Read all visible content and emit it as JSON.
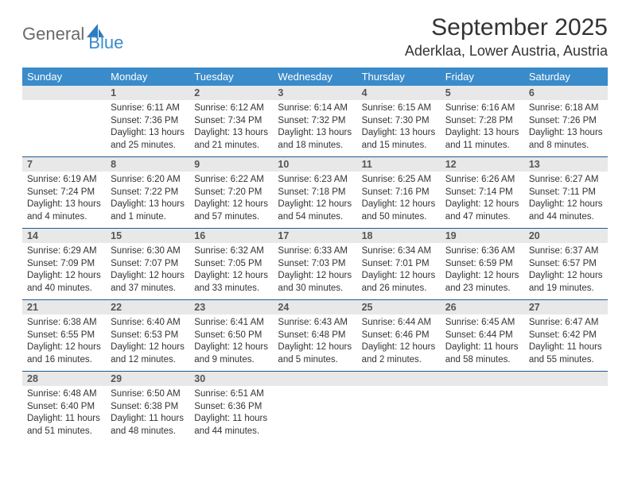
{
  "brand": {
    "part1": "General",
    "part2l": "B",
    "part2r": "lue"
  },
  "title": "September 2025",
  "location": "Aderklaa, Lower Austria, Austria",
  "colors": {
    "header_bg": "#3a8bca",
    "header_text": "#ffffff",
    "grid_border": "#1f5b8f",
    "daynum_bg": "#e8e8e8",
    "text": "#333333"
  },
  "day_names": [
    "Sunday",
    "Monday",
    "Tuesday",
    "Wednesday",
    "Thursday",
    "Friday",
    "Saturday"
  ],
  "weeks": [
    [
      {
        "n": "",
        "empty": true
      },
      {
        "n": "1",
        "sr": "Sunrise: 6:11 AM",
        "ss": "Sunset: 7:36 PM",
        "dl": "Daylight: 13 hours and 25 minutes."
      },
      {
        "n": "2",
        "sr": "Sunrise: 6:12 AM",
        "ss": "Sunset: 7:34 PM",
        "dl": "Daylight: 13 hours and 21 minutes."
      },
      {
        "n": "3",
        "sr": "Sunrise: 6:14 AM",
        "ss": "Sunset: 7:32 PM",
        "dl": "Daylight: 13 hours and 18 minutes."
      },
      {
        "n": "4",
        "sr": "Sunrise: 6:15 AM",
        "ss": "Sunset: 7:30 PM",
        "dl": "Daylight: 13 hours and 15 minutes."
      },
      {
        "n": "5",
        "sr": "Sunrise: 6:16 AM",
        "ss": "Sunset: 7:28 PM",
        "dl": "Daylight: 13 hours and 11 minutes."
      },
      {
        "n": "6",
        "sr": "Sunrise: 6:18 AM",
        "ss": "Sunset: 7:26 PM",
        "dl": "Daylight: 13 hours and 8 minutes."
      }
    ],
    [
      {
        "n": "7",
        "sr": "Sunrise: 6:19 AM",
        "ss": "Sunset: 7:24 PM",
        "dl": "Daylight: 13 hours and 4 minutes."
      },
      {
        "n": "8",
        "sr": "Sunrise: 6:20 AM",
        "ss": "Sunset: 7:22 PM",
        "dl": "Daylight: 13 hours and 1 minute."
      },
      {
        "n": "9",
        "sr": "Sunrise: 6:22 AM",
        "ss": "Sunset: 7:20 PM",
        "dl": "Daylight: 12 hours and 57 minutes."
      },
      {
        "n": "10",
        "sr": "Sunrise: 6:23 AM",
        "ss": "Sunset: 7:18 PM",
        "dl": "Daylight: 12 hours and 54 minutes."
      },
      {
        "n": "11",
        "sr": "Sunrise: 6:25 AM",
        "ss": "Sunset: 7:16 PM",
        "dl": "Daylight: 12 hours and 50 minutes."
      },
      {
        "n": "12",
        "sr": "Sunrise: 6:26 AM",
        "ss": "Sunset: 7:14 PM",
        "dl": "Daylight: 12 hours and 47 minutes."
      },
      {
        "n": "13",
        "sr": "Sunrise: 6:27 AM",
        "ss": "Sunset: 7:11 PM",
        "dl": "Daylight: 12 hours and 44 minutes."
      }
    ],
    [
      {
        "n": "14",
        "sr": "Sunrise: 6:29 AM",
        "ss": "Sunset: 7:09 PM",
        "dl": "Daylight: 12 hours and 40 minutes."
      },
      {
        "n": "15",
        "sr": "Sunrise: 6:30 AM",
        "ss": "Sunset: 7:07 PM",
        "dl": "Daylight: 12 hours and 37 minutes."
      },
      {
        "n": "16",
        "sr": "Sunrise: 6:32 AM",
        "ss": "Sunset: 7:05 PM",
        "dl": "Daylight: 12 hours and 33 minutes."
      },
      {
        "n": "17",
        "sr": "Sunrise: 6:33 AM",
        "ss": "Sunset: 7:03 PM",
        "dl": "Daylight: 12 hours and 30 minutes."
      },
      {
        "n": "18",
        "sr": "Sunrise: 6:34 AM",
        "ss": "Sunset: 7:01 PM",
        "dl": "Daylight: 12 hours and 26 minutes."
      },
      {
        "n": "19",
        "sr": "Sunrise: 6:36 AM",
        "ss": "Sunset: 6:59 PM",
        "dl": "Daylight: 12 hours and 23 minutes."
      },
      {
        "n": "20",
        "sr": "Sunrise: 6:37 AM",
        "ss": "Sunset: 6:57 PM",
        "dl": "Daylight: 12 hours and 19 minutes."
      }
    ],
    [
      {
        "n": "21",
        "sr": "Sunrise: 6:38 AM",
        "ss": "Sunset: 6:55 PM",
        "dl": "Daylight: 12 hours and 16 minutes."
      },
      {
        "n": "22",
        "sr": "Sunrise: 6:40 AM",
        "ss": "Sunset: 6:53 PM",
        "dl": "Daylight: 12 hours and 12 minutes."
      },
      {
        "n": "23",
        "sr": "Sunrise: 6:41 AM",
        "ss": "Sunset: 6:50 PM",
        "dl": "Daylight: 12 hours and 9 minutes."
      },
      {
        "n": "24",
        "sr": "Sunrise: 6:43 AM",
        "ss": "Sunset: 6:48 PM",
        "dl": "Daylight: 12 hours and 5 minutes."
      },
      {
        "n": "25",
        "sr": "Sunrise: 6:44 AM",
        "ss": "Sunset: 6:46 PM",
        "dl": "Daylight: 12 hours and 2 minutes."
      },
      {
        "n": "26",
        "sr": "Sunrise: 6:45 AM",
        "ss": "Sunset: 6:44 PM",
        "dl": "Daylight: 11 hours and 58 minutes."
      },
      {
        "n": "27",
        "sr": "Sunrise: 6:47 AM",
        "ss": "Sunset: 6:42 PM",
        "dl": "Daylight: 11 hours and 55 minutes."
      }
    ],
    [
      {
        "n": "28",
        "sr": "Sunrise: 6:48 AM",
        "ss": "Sunset: 6:40 PM",
        "dl": "Daylight: 11 hours and 51 minutes."
      },
      {
        "n": "29",
        "sr": "Sunrise: 6:50 AM",
        "ss": "Sunset: 6:38 PM",
        "dl": "Daylight: 11 hours and 48 minutes."
      },
      {
        "n": "30",
        "sr": "Sunrise: 6:51 AM",
        "ss": "Sunset: 6:36 PM",
        "dl": "Daylight: 11 hours and 44 minutes."
      },
      {
        "n": "",
        "empty": true
      },
      {
        "n": "",
        "empty": true
      },
      {
        "n": "",
        "empty": true
      },
      {
        "n": "",
        "empty": true
      }
    ]
  ]
}
